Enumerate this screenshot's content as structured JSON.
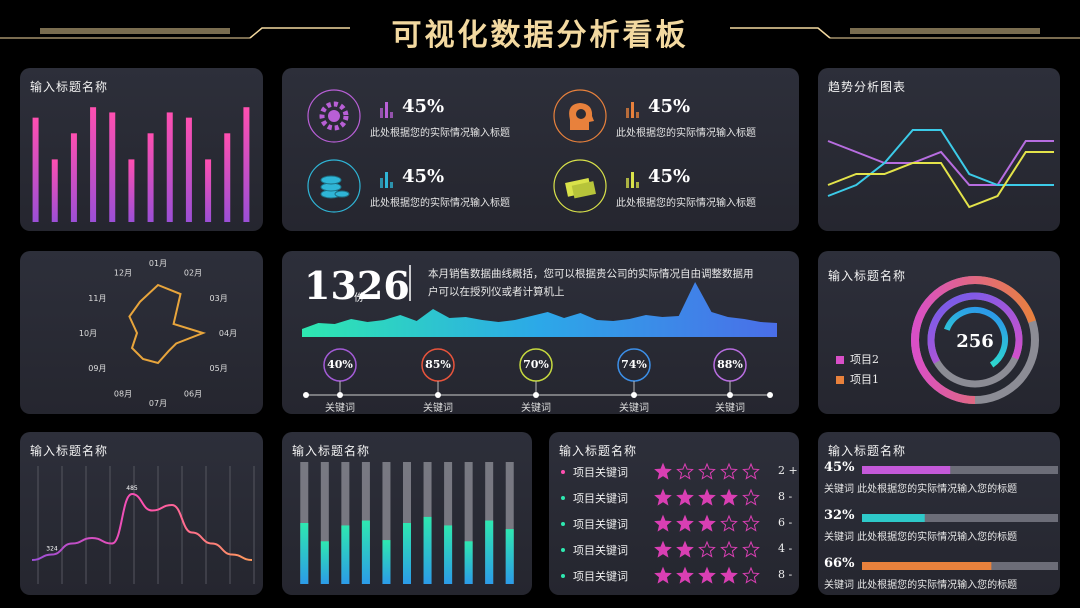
{
  "header": {
    "title": "可视化数据分析看板"
  },
  "bar_panel": {
    "title": "输入标题名称",
    "chart_data": {
      "type": "bar",
      "values": [
        100,
        60,
        85,
        110,
        105,
        60,
        85,
        105,
        100,
        60,
        85,
        110
      ],
      "ylim": [
        0,
        115
      ]
    }
  },
  "metrics": {
    "items": [
      {
        "pct": "45%",
        "desc": "此处根据您的实际情况输入标题",
        "icon": "gear-icon",
        "color": "#b85fd6"
      },
      {
        "pct": "45%",
        "desc": "此处根据您的实际情况输入标题",
        "icon": "head-gear-icon",
        "color": "#e8813c"
      },
      {
        "pct": "45%",
        "desc": "此处根据您的实际情况输入标题",
        "icon": "coins-icon",
        "color": "#2fb5d6"
      },
      {
        "pct": "45%",
        "desc": "此处根据您的实际情况输入标题",
        "icon": "money-icon",
        "color": "#d9e24a"
      }
    ]
  },
  "trend_panel": {
    "title": "趋势分析图表",
    "chart_data": {
      "type": "line",
      "ylim": [
        0,
        10
      ],
      "series": [
        {
          "color": "#b76de0",
          "values": [
            7,
            6,
            5,
            5,
            6,
            3,
            3,
            7,
            7
          ]
        },
        {
          "color": "#3ccbe8",
          "values": [
            2,
            3,
            5,
            8,
            8,
            4,
            3,
            3,
            3
          ]
        },
        {
          "color": "#e3e34a",
          "values": [
            3,
            4,
            4,
            5,
            5,
            1,
            2,
            6,
            6
          ]
        }
      ]
    }
  },
  "radar_panel": {
    "chart_data": {
      "type": "radar",
      "categories": [
        "01月",
        "02月",
        "03月",
        "04月",
        "05月",
        "06月",
        "07月",
        "08月",
        "09月",
        "10月",
        "11月",
        "12月"
      ],
      "values": [
        0.8,
        0.75,
        0.3,
        0.75,
        0.35,
        0.35,
        0.5,
        0.5,
        0.5,
        0.35,
        0.55,
        0.6
      ],
      "rmax": 1
    }
  },
  "sales": {
    "number": "1326",
    "unit": "份",
    "summary": "本月销售数据曲线概括，您可以根据贵公司的实际情况自由调整数据用户可以在授列仪或者计算机上",
    "chart_data": {
      "type": "area",
      "values": [
        8,
        14,
        13,
        18,
        15,
        17,
        22,
        16,
        28,
        19,
        20,
        17,
        15,
        17,
        21,
        25,
        19,
        24,
        17,
        16,
        18,
        22,
        20,
        21,
        55,
        25,
        20,
        18,
        15,
        14
      ],
      "ylim": [
        0,
        60
      ]
    },
    "keywords": [
      {
        "pct": "40%",
        "label": "关键词",
        "color": "#a35bd6"
      },
      {
        "pct": "85%",
        "label": "关键词",
        "color": "#e8543c"
      },
      {
        "pct": "70%",
        "label": "关键词",
        "color": "#c6d93f"
      },
      {
        "pct": "74%",
        "label": "关键词",
        "color": "#3c8fe8"
      },
      {
        "pct": "88%",
        "label": "关键词",
        "color": "#b86de0"
      }
    ]
  },
  "donut_panel": {
    "title": "输入标题名称",
    "center_value": "256",
    "legend": [
      {
        "label": "项目2",
        "color": "#d94fc7"
      },
      {
        "label": "项目1",
        "color": "#e8813c"
      }
    ]
  },
  "spline_panel": {
    "title": "输入标题名称",
    "chart_data": {
      "type": "line",
      "values": [
        8,
        10,
        14,
        16,
        14,
        32,
        26,
        28,
        18,
        14,
        10,
        8
      ],
      "ylim": [
        0,
        40
      ]
    },
    "markers": [
      "324",
      "485"
    ]
  },
  "col_panel": {
    "title": "输入标题名称",
    "chart_data": {
      "type": "bar",
      "values": [
        0.5,
        0.35,
        0.48,
        0.52,
        0.36,
        0.5,
        0.55,
        0.48,
        0.35,
        0.52,
        0.45
      ],
      "ylim": [
        0,
        1
      ]
    }
  },
  "ratings_panel": {
    "title": "输入标题名称",
    "rows": [
      {
        "label": "项目关键词",
        "stars": 1,
        "value": "2",
        "sign": "+"
      },
      {
        "label": "项目关键词",
        "stars": 4,
        "value": "8",
        "sign": "-"
      },
      {
        "label": "项目关键词",
        "stars": 3,
        "value": "6",
        "sign": "-"
      },
      {
        "label": "项目关键词",
        "stars": 2,
        "value": "4",
        "sign": "-"
      },
      {
        "label": "项目关键词",
        "stars": 4,
        "value": "8",
        "sign": "-"
      }
    ]
  },
  "progress_panel": {
    "title": "输入标题名称",
    "items": [
      {
        "pct": "45%",
        "fraction": 0.45,
        "desc": "关键词  此处根据您的实际情况输入您的标题",
        "color": "#c459d9"
      },
      {
        "pct": "32%",
        "fraction": 0.32,
        "desc": "关键词  此处根据您的实际情况输入您的标题",
        "color": "#2ec9c9"
      },
      {
        "pct": "66%",
        "fraction": 0.66,
        "desc": "关键词  此处根据您的实际情况输入您的标题",
        "color": "#e8813c"
      }
    ]
  }
}
